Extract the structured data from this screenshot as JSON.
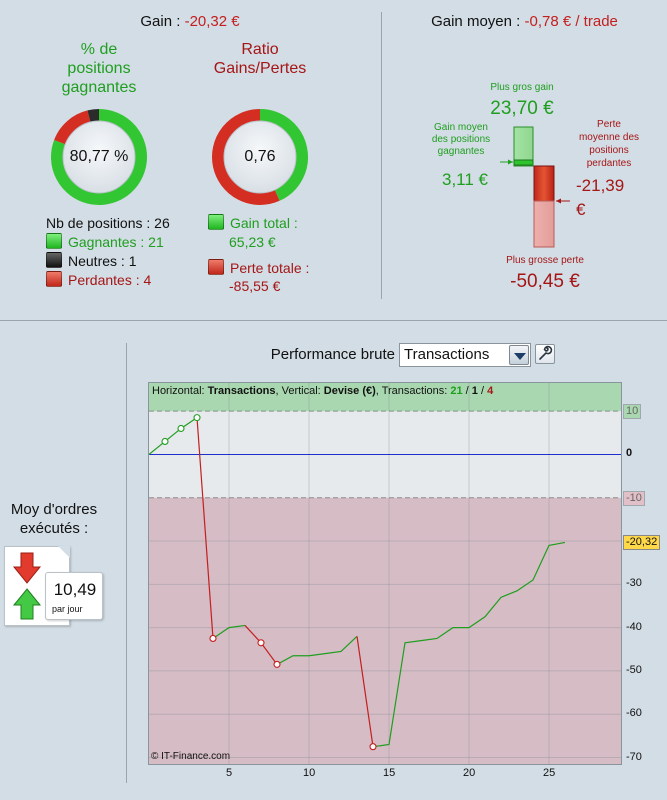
{
  "gain": {
    "label": "Gain :",
    "value": "-20,32 €"
  },
  "gain_moyen": {
    "label": "Gain moyen :",
    "value": "-0,78 € / trade"
  },
  "winning_positions": {
    "title_line1": "% de",
    "title_line2": "positions",
    "title_line3": "gagnantes",
    "value": "80,77 %",
    "fraction_win": 0.8077,
    "fraction_neutral": 0.0385,
    "fraction_loss": 0.1538
  },
  "ratio": {
    "title_line1": "Ratio",
    "title_line2": "Gains/Pertes",
    "value": "0,76",
    "fraction_gain": 0.433
  },
  "positions": {
    "total_label": "Nb de positions : 26",
    "winning_label": "Gagnantes : 21",
    "neutral_label": "Neutres : 1",
    "losing_label": "Perdantes : 4"
  },
  "totals": {
    "gain_label": "Gain total :",
    "gain_value": "65,23 €",
    "loss_label": "Perte totale :",
    "loss_value": "-85,55 €"
  },
  "ladder": {
    "biggest_gain_label": "Plus gros gain",
    "biggest_gain_value": "23,70 €",
    "avg_gain_label_1": "Gain moyen",
    "avg_gain_label_2": "des positions",
    "avg_gain_label_3": "gagnantes",
    "avg_gain_value": "3,11 €",
    "avg_loss_label_1": "Perte",
    "avg_loss_label_2": "moyenne des",
    "avg_loss_label_3": "positions",
    "avg_loss_label_4": "perdantes",
    "avg_loss_value": "-21,39",
    "avg_loss_unit": "€",
    "biggest_loss_label": "Plus grosse perte",
    "biggest_loss_value": "-50,45 €"
  },
  "performance": {
    "title": "Performance brute",
    "select_value": "Transactions",
    "header_h_label": "Horizontal: ",
    "header_h_value": "Transactions",
    "header_v_label": ", Vertical: ",
    "header_v_value": "Devise (€)",
    "header_t_label": ", Transactions: ",
    "header_t_win": "21",
    "header_t_sep1": " / ",
    "header_t_neutral": "1",
    "header_t_sep2": " / ",
    "header_t_loss": "4",
    "credit": "© IT-Finance.com"
  },
  "orders": {
    "label_line1": "Moy d'ordres",
    "label_line2": "exécutés :",
    "value": "10,49",
    "unit": "par jour"
  },
  "colors": {
    "win": "#1f9e1f",
    "loss": "#c41e1e",
    "zero_line": "#1f2fcc",
    "green_zone": "#a9d8b0",
    "red_zone": "#d6bcc4"
  },
  "chart_data": {
    "type": "line",
    "x_ticks": [
      5,
      10,
      15,
      20,
      25
    ],
    "y_ticks": [
      10,
      0,
      -10,
      -20,
      -30,
      -40,
      -50,
      -60,
      -70
    ],
    "last_value_tag": "-20,32",
    "xlim": [
      0,
      29.5
    ],
    "ylim": [
      -71.5,
      16.5
    ],
    "green_zone": [
      10,
      16.5
    ],
    "red_zone": [
      -71.5,
      -10
    ],
    "series": [
      {
        "x": [
          0,
          1,
          2,
          3
        ],
        "y": [
          0,
          3,
          6,
          8.5
        ],
        "color": "#1f9e1f",
        "markers": [
          1,
          2,
          3
        ]
      },
      {
        "x": [
          3,
          4
        ],
        "y": [
          8.5,
          -42.5
        ],
        "color": "#c41e1e",
        "markers": [
          4
        ]
      },
      {
        "x": [
          4,
          5,
          6
        ],
        "y": [
          -42.5,
          -40,
          -39.5
        ],
        "color": "#1f9e1f",
        "markers": []
      },
      {
        "x": [
          6,
          7,
          8
        ],
        "y": [
          -39.5,
          -43.5,
          -48.5
        ],
        "color": "#c41e1e",
        "markers": [
          7,
          8
        ]
      },
      {
        "x": [
          8,
          9,
          10,
          11,
          12,
          13
        ],
        "y": [
          -48.5,
          -46.5,
          -46.5,
          -46,
          -45.5,
          -42
        ],
        "color": "#1f9e1f",
        "markers": []
      },
      {
        "x": [
          13,
          14
        ],
        "y": [
          -42,
          -67.5
        ],
        "color": "#c41e1e",
        "markers": [
          14
        ]
      },
      {
        "x": [
          14,
          15,
          16,
          17,
          18,
          19,
          20,
          21,
          22,
          23,
          24,
          25,
          26
        ],
        "y": [
          -67.5,
          -67,
          -43.5,
          -43,
          -42.5,
          -40,
          -40,
          -37.5,
          -33,
          -31.5,
          -29,
          -21,
          -20.32
        ],
        "color": "#1f9e1f",
        "markers": []
      }
    ]
  }
}
